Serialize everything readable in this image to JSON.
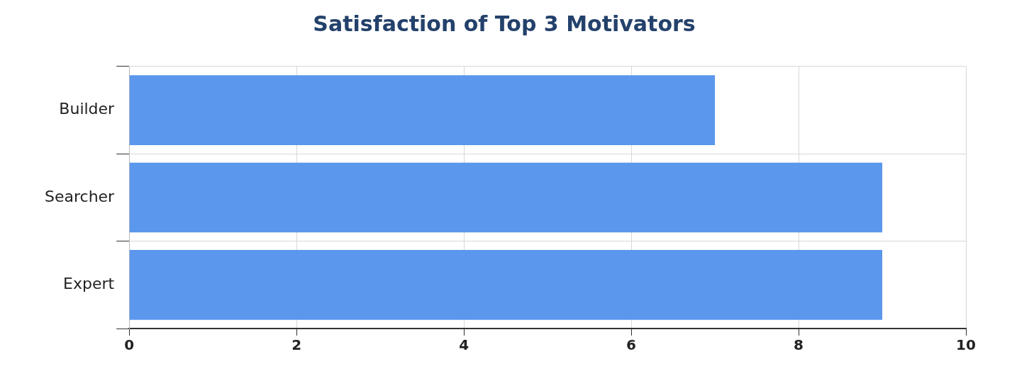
{
  "chart_data": {
    "type": "bar",
    "orientation": "horizontal",
    "title": "Satisfaction of Top 3 Motivators",
    "categories": [
      "Builder",
      "Searcher",
      "Expert"
    ],
    "values": [
      7,
      9,
      9
    ],
    "color": "#5b97ec",
    "xlim": [
      0,
      10
    ],
    "xticks": [
      0,
      2,
      4,
      6,
      8,
      10
    ],
    "grid": true
  }
}
